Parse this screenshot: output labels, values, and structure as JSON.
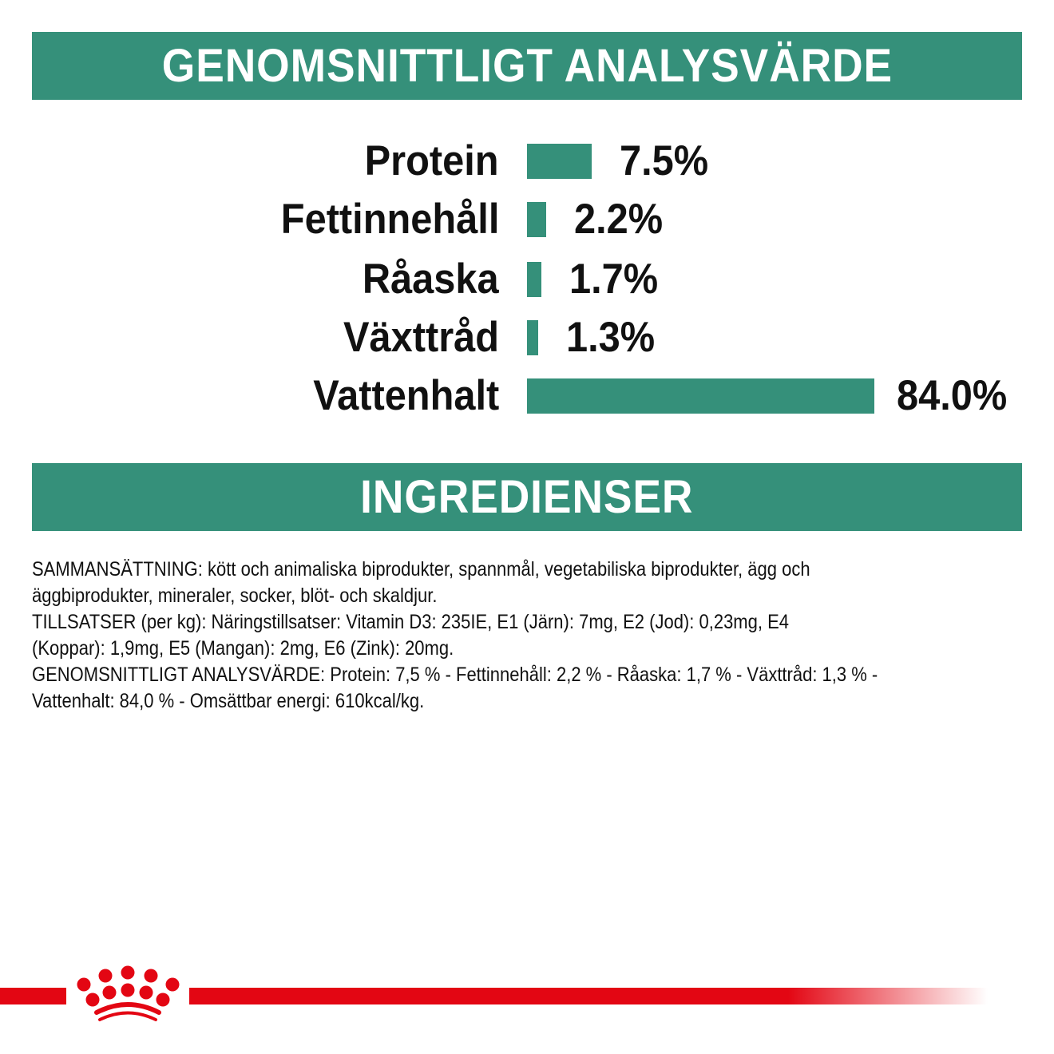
{
  "colors": {
    "accent": "#35907a",
    "brand_red": "#e30613",
    "text": "#111111"
  },
  "header1": "GENOMSNITTLIGT ANALYSVÄRDE",
  "header2": "INGREDIENSER",
  "chart_data": {
    "type": "bar",
    "orientation": "horizontal",
    "categories": [
      "Protein",
      "Fettinnehåll",
      "Råaska",
      "Växttråd",
      "Vattenhalt"
    ],
    "values": [
      7.5,
      2.2,
      1.7,
      1.3,
      84.0
    ],
    "value_labels": [
      "7.5%",
      "2.2%",
      "1.7%",
      "1.3%",
      "84.0%"
    ],
    "unit": "%"
  },
  "ingredients": {
    "lines": [
      "SAMMANSÄTTNING: kött och animaliska biprodukter, spannmål, vegetabiliska biprodukter, ägg och",
      "äggbiprodukter, mineraler, socker, blöt- och skaldjur.",
      "TILLSATSER (per kg): Näringstillsatser: Vitamin D3: 235IE, E1 (Järn): 7mg, E2 (Jod): 0,23mg, E4",
      "(Koppar): 1,9mg, E5 (Mangan): 2mg, E6 (Zink): 20mg.",
      "GENOMSNITTLIGT ANALYSVÄRDE: Protein: 7,5 % - Fettinnehåll: 2,2 % - Råaska: 1,7 % - Växttråd: 1,3 % -",
      "Vattenhalt: 84,0 % - Omsättbar energi: 610kcal/kg."
    ]
  },
  "footer": {
    "logo": "royal-canin-crown-logo"
  }
}
